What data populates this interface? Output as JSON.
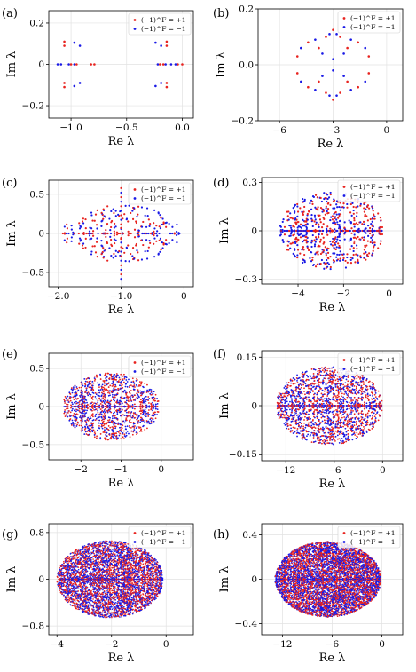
{
  "colors": {
    "even": "#e8231f",
    "odd": "#1a1ae6"
  },
  "legend": {
    "even": "(−1)^F = +1",
    "odd": "(−1)^F = −1"
  },
  "chart_data": [
    {
      "panel": "(a)",
      "type": "scatter",
      "xlabel": "Re λ",
      "ylabel": "Im λ",
      "xlim": [
        -1.2,
        0.1
      ],
      "ylim": [
        -0.26,
        0.26
      ],
      "xticks": [
        -1.0,
        -0.5,
        0.0
      ],
      "xtick_labels": [
        "−1.0",
        "−0.5",
        "0.0"
      ],
      "yticks": [
        -0.2,
        0.0,
        0.2
      ],
      "ytick_labels": [
        "−0.2",
        "0",
        "0.2"
      ],
      "legend_position": "top-right",
      "pattern": "sparse",
      "series": [
        {
          "name": "(−1)^F = +1",
          "sign": 1,
          "points": [
            [
              -1.06,
              0.11
            ],
            [
              -1.06,
              -0.11
            ],
            [
              -1.06,
              0.09
            ],
            [
              -1.06,
              -0.09
            ],
            [
              -0.14,
              0.11
            ],
            [
              -0.14,
              -0.11
            ],
            [
              -0.14,
              0.09
            ],
            [
              -0.14,
              -0.09
            ],
            [
              -1.0,
              0.0
            ],
            [
              -0.95,
              0.0
            ],
            [
              -0.82,
              0.0
            ],
            [
              -0.79,
              0.0
            ],
            [
              -0.2,
              0.0
            ],
            [
              -0.17,
              0.0
            ],
            [
              -0.04,
              0.0
            ],
            [
              -0.0,
              0.0
            ]
          ]
        },
        {
          "name": "(−1)^F = −1",
          "sign": -1,
          "points": [
            [
              -0.97,
              0.105
            ],
            [
              -0.97,
              -0.105
            ],
            [
              -0.92,
              0.09
            ],
            [
              -0.92,
              -0.09
            ],
            [
              -0.24,
              0.105
            ],
            [
              -0.24,
              -0.105
            ],
            [
              -0.19,
              0.09
            ],
            [
              -0.19,
              -0.09
            ],
            [
              -1.12,
              0.0
            ],
            [
              -1.09,
              0.0
            ],
            [
              -1.02,
              0.0
            ],
            [
              -0.97,
              0.0
            ],
            [
              -0.22,
              0.0
            ],
            [
              -0.15,
              0.0
            ],
            [
              -0.1,
              0.0
            ],
            [
              -0.06,
              0.0
            ]
          ]
        }
      ]
    },
    {
      "panel": "(b)",
      "type": "scatter",
      "xlabel": "Re λ",
      "ylabel": "Im λ",
      "xlim": [
        -7.2,
        0.9
      ],
      "ylim": [
        -0.2,
        0.2
      ],
      "xticks": [
        -6,
        -3,
        0
      ],
      "xtick_labels": [
        "−6",
        "−3",
        "0"
      ],
      "yticks": [
        -0.2,
        0.0,
        0.2
      ],
      "ytick_labels": [
        "−0.2",
        "0.0",
        "0.2"
      ],
      "legend_position": "top-right",
      "pattern": "sparse",
      "series": [
        {
          "name": "(−1)^F = +1",
          "sign": 1,
          "points": [
            [
              -3.0,
              0.125
            ],
            [
              -3.0,
              -0.125
            ],
            [
              -2.6,
              0.1
            ],
            [
              -2.6,
              -0.1
            ],
            [
              -3.4,
              0.1
            ],
            [
              -3.4,
              -0.1
            ],
            [
              -4.4,
              0.08
            ],
            [
              -4.4,
              -0.08
            ],
            [
              -1.6,
              0.08
            ],
            [
              -1.6,
              -0.08
            ],
            [
              -3.8,
              0.06
            ],
            [
              -3.8,
              -0.06
            ],
            [
              -2.2,
              0.06
            ],
            [
              -2.2,
              -0.06
            ],
            [
              -5.0,
              0.03
            ],
            [
              -5.0,
              -0.03
            ],
            [
              -1.0,
              0.03
            ],
            [
              -1.0,
              -0.03
            ]
          ]
        },
        {
          "name": "(−1)^F = −1",
          "sign": -1,
          "points": [
            [
              -3.2,
              0.11
            ],
            [
              -3.2,
              -0.11
            ],
            [
              -2.8,
              0.11
            ],
            [
              -2.8,
              -0.11
            ],
            [
              -4.0,
              0.09
            ],
            [
              -4.0,
              -0.09
            ],
            [
              -2.0,
              0.09
            ],
            [
              -2.0,
              -0.09
            ],
            [
              -4.8,
              0.06
            ],
            [
              -4.8,
              -0.06
            ],
            [
              -1.2,
              0.06
            ],
            [
              -1.2,
              -0.06
            ],
            [
              -3.6,
              0.04
            ],
            [
              -3.6,
              -0.04
            ],
            [
              -2.4,
              0.04
            ],
            [
              -2.4,
              -0.04
            ],
            [
              -3.0,
              0.02
            ],
            [
              -3.0,
              -0.02
            ]
          ]
        }
      ]
    },
    {
      "panel": "(c)",
      "type": "scatter",
      "xlabel": "Re λ",
      "ylabel": "Im λ",
      "xlim": [
        -2.15,
        0.15
      ],
      "ylim": [
        -0.68,
        0.68
      ],
      "xticks": [
        -2.0,
        -1.0,
        0.0
      ],
      "xtick_labels": [
        "−2.0",
        "−1.0",
        "0"
      ],
      "yticks": [
        -0.5,
        0.0,
        0.5
      ],
      "ytick_labels": [
        "−0.5",
        "0",
        "0.5"
      ],
      "legend_position": "top-right",
      "pattern": "cloud",
      "cloud": {
        "cx": -1.0,
        "rx": 0.95,
        "ry": 0.36,
        "n": 130,
        "axis_points": 46,
        "spike": [
          0.58,
          0.57
        ]
      }
    },
    {
      "panel": "(d)",
      "type": "scatter",
      "xlabel": "Re λ",
      "ylabel": "Im λ",
      "xlim": [
        -5.6,
        0.6
      ],
      "ylim": [
        -0.33,
        0.33
      ],
      "xticks": [
        -4,
        -2,
        0
      ],
      "xtick_labels": [
        "−4",
        "−2",
        "0"
      ],
      "yticks": [
        -0.3,
        0.0,
        0.3
      ],
      "ytick_labels": [
        "−0.3",
        "0",
        "0.3"
      ],
      "legend_position": "top-right",
      "pattern": "cloud",
      "cloud": {
        "cx": -2.5,
        "rx": 2.3,
        "ry": 0.24,
        "n": 300,
        "axis_points": 120,
        "spike": [
          0,
          0
        ]
      }
    },
    {
      "panel": "(e)",
      "type": "scatter",
      "xlabel": "Re λ",
      "ylabel": "Im λ",
      "xlim": [
        -2.8,
        0.8
      ],
      "ylim": [
        -0.7,
        0.7
      ],
      "xticks": [
        -2,
        -1,
        0
      ],
      "xtick_labels": [
        "−2",
        "−1",
        "0"
      ],
      "yticks": [
        -0.5,
        0.0,
        0.5
      ],
      "ytick_labels": [
        "−0.5",
        "0",
        "0.5"
      ],
      "legend_position": "top-right",
      "pattern": "cloud",
      "cloud": {
        "cx": -1.25,
        "rx": 1.2,
        "ry": 0.44,
        "n": 620,
        "axis_points": 130,
        "spike": [
          0,
          0
        ]
      }
    },
    {
      "panel": "(f)",
      "type": "scatter",
      "xlabel": "Re λ",
      "ylabel": "Im λ",
      "xlim": [
        -15,
        2.5
      ],
      "ylim": [
        -0.17,
        0.17
      ],
      "xticks": [
        -12,
        -6,
        0
      ],
      "xtick_labels": [
        "−12",
        "−6",
        "0"
      ],
      "yticks": [
        -0.15,
        0.0,
        0.15
      ],
      "ytick_labels": [
        "−0.15",
        "0",
        "0.15"
      ],
      "legend_position": "top-right",
      "pattern": "cloud",
      "cloud": {
        "cx": -6.6,
        "rx": 6.6,
        "ry": 0.12,
        "n": 900,
        "axis_points": 200,
        "spike": [
          0,
          0
        ]
      }
    },
    {
      "panel": "(g)",
      "type": "scatter",
      "xlabel": "Re λ",
      "ylabel": "Im λ",
      "xlim": [
        -4.3,
        1.0
      ],
      "ylim": [
        -0.95,
        0.95
      ],
      "xticks": [
        -4,
        -2,
        0
      ],
      "xtick_labels": [
        "−4",
        "−2",
        "0"
      ],
      "yticks": [
        -0.8,
        0.0,
        0.8
      ],
      "ytick_labels": [
        "−0.8",
        "0",
        "0.8"
      ],
      "legend_position": "top-right",
      "pattern": "cloud",
      "cloud": {
        "cx": -2.05,
        "rx": 1.95,
        "ry": 0.66,
        "n": 2400,
        "axis_points": 260,
        "spike": [
          0,
          0
        ]
      }
    },
    {
      "panel": "(h)",
      "type": "scatter",
      "xlabel": "Re λ",
      "ylabel": "Im λ",
      "xlim": [
        -14.5,
        2.5
      ],
      "ylim": [
        -0.5,
        0.5
      ],
      "xticks": [
        -12,
        -6,
        0
      ],
      "xtick_labels": [
        "−12",
        "−6",
        "0"
      ],
      "yticks": [
        -0.4,
        0.0,
        0.4
      ],
      "ytick_labels": [
        "−0.4",
        "0",
        "0.4"
      ],
      "legend_position": "top-right",
      "pattern": "cloud",
      "cloud": {
        "cx": -6.5,
        "rx": 6.4,
        "ry": 0.34,
        "n": 3200,
        "axis_points": 300,
        "spike": [
          0,
          0
        ]
      }
    }
  ]
}
